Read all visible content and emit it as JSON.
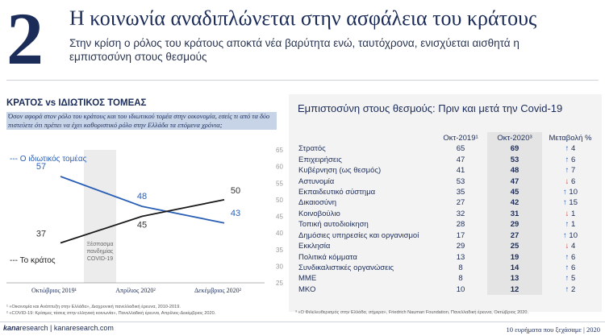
{
  "header": {
    "number": "2",
    "title": "Η κοινωνία αναδιπλώνεται στην ασφάλεια του κράτους",
    "subtitle": "Στην κρίση ο ρόλος του κράτους αποκτά νέα βαρύτητα ενώ, ταυτόχρονα, ενισχύεται αισθητά η εμπιστοσύνη στους θεσμούς"
  },
  "left_panel": {
    "title": "ΚΡΑΤΟΣ vs ΙΔΙΩΤΙΚΟΣ ΤΟΜΕΑΣ",
    "question": "Όσον αφορά στον ρόλο του κράτους και του ιδιωτικού τομέα στην οικονομία, εσείς τι από τα δύο πιστεύετε ότι πρέπει να έχει καθοριστικό ρόλο στην Ελλάδα τα επόμενα χρόνια;",
    "pandemic_label": [
      "Ξέσπασμα",
      "πανδημίας",
      "COVID-19"
    ],
    "sources": [
      "¹ «Οικονομία και Ανάπτυξη στην Ελλάδα», Διαχρονική πανελλαδική έρευνα, 2010-2019.",
      "² «COVID-19: Κρίσιμες τάσεις στην ελληνική κοινωνία», Πανελλαδική έρευνα, Απρίλιος-Δεκέμβριος 2020."
    ]
  },
  "chart_data": {
    "type": "line",
    "categories": [
      "Οκτώβριος 2019¹",
      "Απρίλιος 2020²",
      "Δεκέμβριος 2020²"
    ],
    "series": [
      {
        "name": "Ο ιδιωτικός τομέας",
        "values": [
          57,
          48,
          43
        ],
        "color": "#2a5fb5"
      },
      {
        "name": "Το κράτος",
        "values": [
          37,
          45,
          50
        ],
        "color": "#1a1a1a"
      }
    ],
    "ylim": [
      25,
      65
    ],
    "yticks": [
      "25",
      "30",
      "35",
      "40",
      "45",
      "50",
      "55",
      "60",
      "65"
    ],
    "grid": false,
    "legend": "inline"
  },
  "right_panel": {
    "title": "Εμπιστοσύνη στους θεσμούς: Πριν και μετά την Covid-19",
    "columns": [
      "Οκτ-2019¹",
      "Οκτ-2020³",
      "Μεταβολή %"
    ],
    "rows": [
      {
        "name": "Στρατός",
        "v2019": "65",
        "v2020": "69",
        "dir": "↑",
        "change": "4"
      },
      {
        "name": "Επιχειρήσεις",
        "v2019": "47",
        "v2020": "53",
        "dir": "↑",
        "change": "6"
      },
      {
        "name": "Κυβέρνηση (ως θεσμός)",
        "v2019": "41",
        "v2020": "48",
        "dir": "↑",
        "change": "7"
      },
      {
        "name": "Αστυνομία",
        "v2019": "53",
        "v2020": "47",
        "dir": "↓",
        "change": "6"
      },
      {
        "name": "Εκπαιδευτικό σύστημα",
        "v2019": "35",
        "v2020": "45",
        "dir": "↑",
        "change": "10"
      },
      {
        "name": "Δικαιοσύνη",
        "v2019": "27",
        "v2020": "42",
        "dir": "↑",
        "change": "15"
      },
      {
        "name": "Κοινοβούλιο",
        "v2019": "32",
        "v2020": "31",
        "dir": "↓",
        "change": "1"
      },
      {
        "name": "Τοπική αυτοδιοίκηση",
        "v2019": "28",
        "v2020": "29",
        "dir": "↑",
        "change": "1"
      },
      {
        "name": "Δημόσιες υπηρεσίες και οργανισμοί",
        "v2019": "17",
        "v2020": "27",
        "dir": "↑",
        "change": "10"
      },
      {
        "name": "Εκκλησία",
        "v2019": "29",
        "v2020": "25",
        "dir": "↓",
        "change": "4"
      },
      {
        "name": "Πολιτικά κόμματα",
        "v2019": "13",
        "v2020": "19",
        "dir": "↑",
        "change": "6"
      },
      {
        "name": "Συνδικαλιστικές οργανώσεις",
        "v2019": "8",
        "v2020": "14",
        "dir": "↑",
        "change": "6"
      },
      {
        "name": "ΜΜΕ",
        "v2019": "8",
        "v2020": "13",
        "dir": "↑",
        "change": "5"
      },
      {
        "name": "ΜΚΟ",
        "v2019": "10",
        "v2020": "12",
        "dir": "↑",
        "change": "2"
      }
    ],
    "source": "³ «Ο Φιλελευθερισμός στην Ελλάδα, σήμερα», Friedrich Nauman Foundation, Πανελλαδική έρευνα, Οκτώβριος 2020."
  },
  "footer": {
    "logo_kana": "kana",
    "logo_research": "research",
    "site": "kanaresearch.com",
    "right_text": "10 ευρήματα που ξεχάσαμε | 2020"
  }
}
